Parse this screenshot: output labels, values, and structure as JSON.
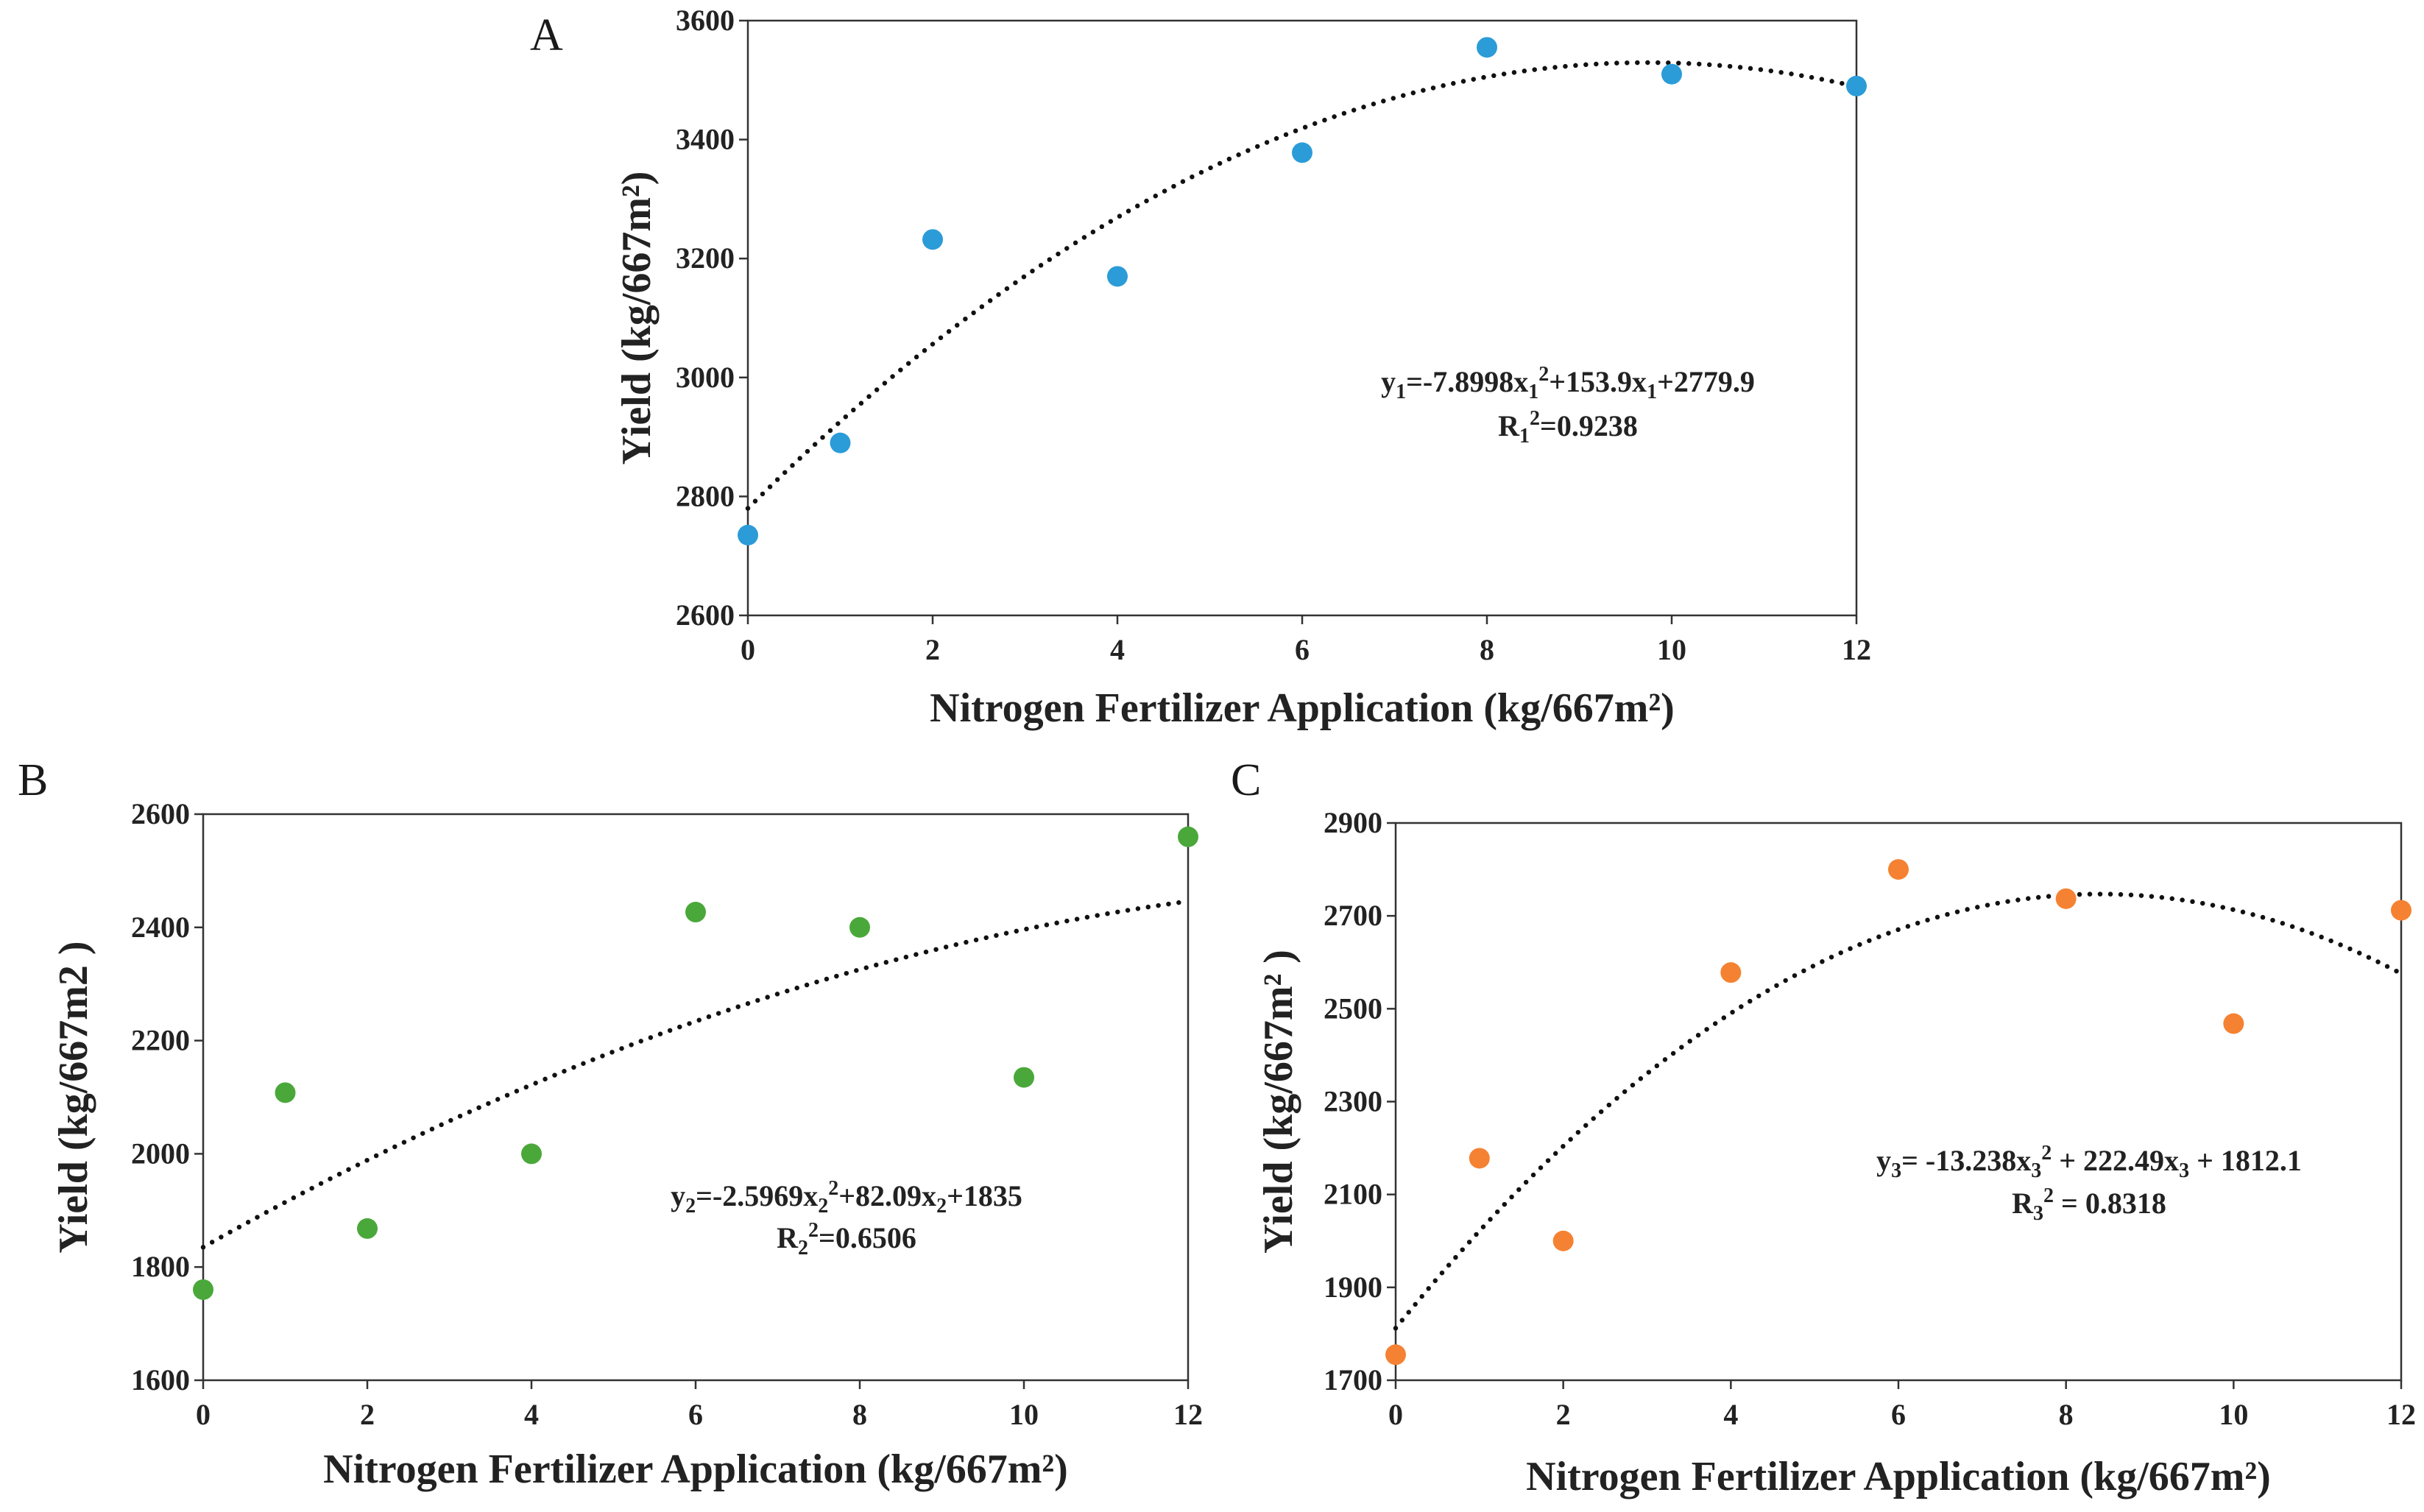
{
  "figure": {
    "panels": [
      "A",
      "B",
      "C"
    ]
  },
  "colors": {
    "A": "#2b9cd8",
    "B": "#4aa83a",
    "C": "#f58232",
    "trend": "#111111"
  },
  "chart_data": [
    {
      "panel": "A",
      "type": "scatter",
      "xlabel": "Nitrogen Fertilizer Application (kg/667m²)",
      "ylabel": "Yield (kg/667m²)",
      "xlim": [
        0,
        12
      ],
      "ylim": [
        2600,
        3600
      ],
      "xticks": [
        0,
        2,
        4,
        6,
        8,
        10,
        12
      ],
      "yticks": [
        2600,
        2800,
        3000,
        3200,
        3400,
        3600
      ],
      "points": {
        "x": [
          0,
          1,
          2,
          4,
          6,
          8,
          10,
          12
        ],
        "y": [
          2735,
          2890,
          3232,
          3170,
          3378,
          3555,
          3510,
          3490
        ]
      },
      "trendline": {
        "type": "polynomial",
        "order": 2,
        "coefficients": [
          -7.8998,
          153.9,
          2779.9
        ],
        "style": "dotted"
      },
      "equation": {
        "prefix": "y",
        "sub1": "1",
        "mid1": "=-7.8998x",
        "sub2": "1",
        "sup1": "2",
        "mid2": "+153.9x",
        "sub3": "1",
        "end": "+2779.9"
      },
      "r2": {
        "prefix": "R",
        "sub": "1",
        "sup": "2",
        "value": "=0.9238"
      }
    },
    {
      "panel": "B",
      "type": "scatter",
      "xlabel": "Nitrogen Fertilizer Application (kg/667m²)",
      "ylabel": "Yield (kg/667m2 )",
      "xlim": [
        0,
        12
      ],
      "ylim": [
        1600,
        2600
      ],
      "xticks": [
        0,
        2,
        4,
        6,
        8,
        10,
        12
      ],
      "yticks": [
        1600,
        1800,
        2000,
        2200,
        2400,
        2600
      ],
      "points": {
        "x": [
          0,
          1,
          2,
          4,
          6,
          8,
          10,
          12
        ],
        "y": [
          1760,
          2108,
          1868,
          2000,
          2427,
          2400,
          2135,
          2560
        ]
      },
      "trendline": {
        "type": "polynomial",
        "order": 2,
        "coefficients": [
          -2.5969,
          82.09,
          1835
        ],
        "style": "dotted"
      },
      "equation": {
        "prefix": "y",
        "sub1": "2",
        "mid1": "=-2.5969x",
        "sub2": "2",
        "sup1": "2",
        "mid2": "+82.09x",
        "sub3": "2",
        "end": "+1835"
      },
      "r2": {
        "prefix": "R",
        "sub": "2",
        "sup": "2",
        "value": "=0.6506"
      }
    },
    {
      "panel": "C",
      "type": "scatter",
      "xlabel": "Nitrogen Fertilizer Application (kg/667m²)",
      "ylabel": "Yield (kg/667m² )",
      "xlim": [
        0,
        12
      ],
      "ylim": [
        1700,
        2900
      ],
      "xticks": [
        0,
        2,
        4,
        6,
        8,
        10,
        12
      ],
      "yticks": [
        1700,
        1900,
        2100,
        2300,
        2500,
        2700,
        2900
      ],
      "points": {
        "x": [
          0,
          1,
          2,
          4,
          6,
          8,
          10,
          12
        ],
        "y": [
          1755,
          2178,
          2000,
          2578,
          2800,
          2737,
          2468,
          2712
        ]
      },
      "trendline": {
        "type": "polynomial",
        "order": 2,
        "coefficients": [
          -13.238,
          222.49,
          1812.1
        ],
        "style": "dotted"
      },
      "equation": {
        "prefix": "y",
        "sub1": "3",
        "mid1": "= -13.238x",
        "sub2": "3",
        "sup1": "2",
        "mid2": " + 222.49x",
        "sub3": "3",
        "end": " + 1812.1"
      },
      "r2": {
        "prefix": "R",
        "sub": "3",
        "sup": "2",
        "value": " = 0.8318"
      }
    }
  ]
}
